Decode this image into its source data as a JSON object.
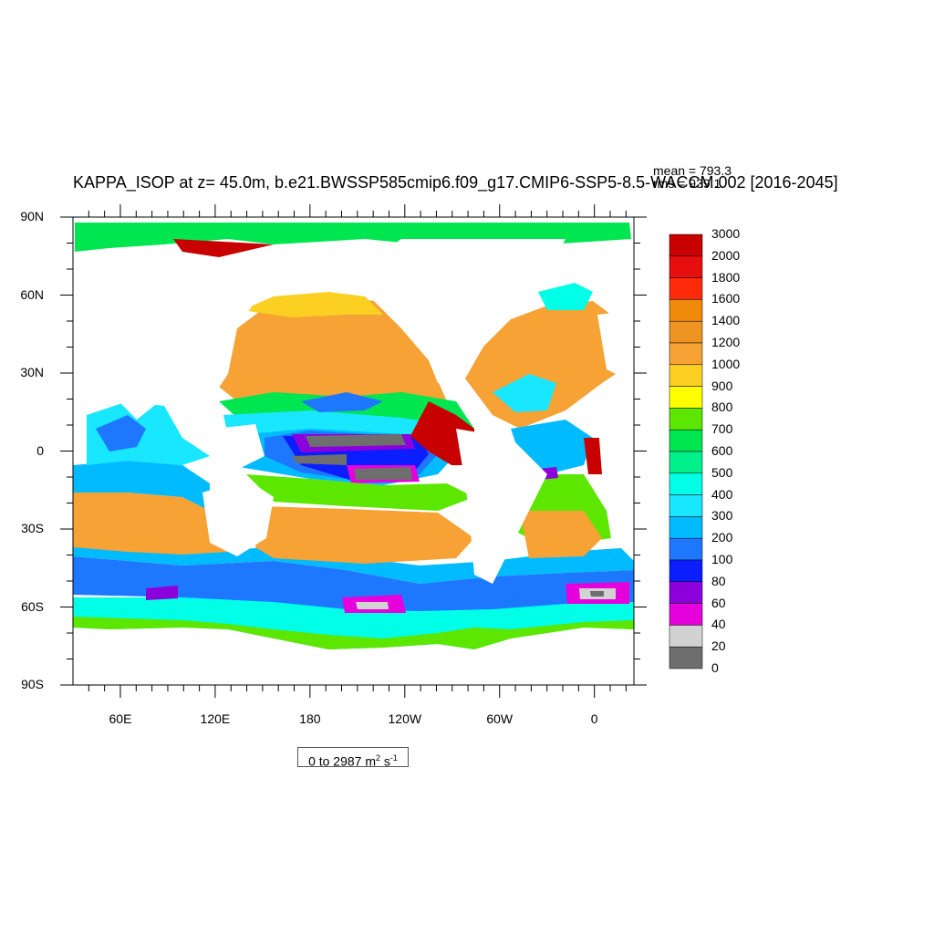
{
  "title": "KAPPA_ISOP at z=  45.0m, b.e21.BWSSP585cmip6.f09_g17.CMIP6-SSP5-8.5-WACCM.002 [2016-2045]",
  "stats": {
    "mean": "mean = 793.3",
    "rms": "rms = 939.1"
  },
  "lat_labels": [
    "90N",
    "60N",
    "30N",
    "0",
    "30S",
    "60S",
    "90S"
  ],
  "lon_labels": [
    "60E",
    "120E",
    "180",
    "120W",
    "60W",
    "0"
  ],
  "colorbar": {
    "levels": [
      "3000",
      "2000",
      "1800",
      "1600",
      "1400",
      "1200",
      "1000",
      "900",
      "800",
      "700",
      "600",
      "500",
      "400",
      "300",
      "200",
      "100",
      "80",
      "60",
      "40",
      "20",
      "0"
    ],
    "colors": [
      "#c80000",
      "#e60e0e",
      "#ff2a0a",
      "#f08a0a",
      "#ee9420",
      "#f6a235",
      "#fbd022",
      "#ffff00",
      "#5ce600",
      "#00e650",
      "#00f08c",
      "#00ffe6",
      "#19e6ff",
      "#00bbff",
      "#1e78ff",
      "#0a1eff",
      "#8c00dc",
      "#e600dc",
      "#d2d2d2",
      "#6e6e6e"
    ]
  },
  "range": {
    "text": "0 to 2987 m",
    "sup1": "2",
    "mid": " s",
    "sup2": "-1"
  },
  "map": {
    "land": "#ffffff",
    "colors": {
      "red": "#c80000",
      "orange": "#f6a235",
      "lightorange": "#fbb84a",
      "yellow": "#ffff00",
      "gold": "#fbd022",
      "green": "#00e650",
      "lime": "#5ce600",
      "cyan": "#00ffe6",
      "lightblue": "#19e6ff",
      "blue": "#00bbff",
      "darkblue": "#1e78ff",
      "navy": "#0a1eff",
      "purple": "#8c00dc",
      "magenta": "#e600dc",
      "lightgray": "#d2d2d2",
      "gray": "#6e6e6e"
    }
  }
}
